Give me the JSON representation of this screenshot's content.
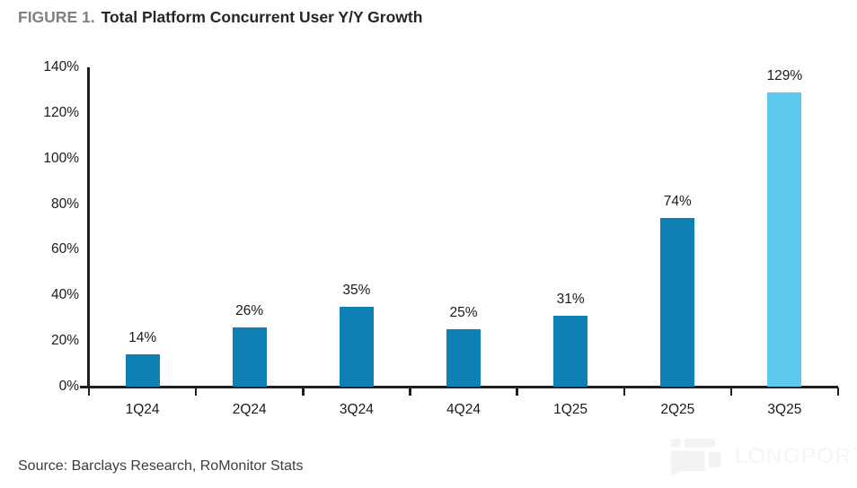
{
  "header": {
    "figure_label": "FIGURE 1.",
    "title": "Total Platform Concurrent User Y/Y Growth"
  },
  "chart_data": {
    "type": "bar",
    "title": "Total Platform Concurrent User Y/Y Growth",
    "categories": [
      "1Q24",
      "2Q24",
      "3Q24",
      "4Q24",
      "1Q25",
      "2Q25",
      "3Q25"
    ],
    "values": [
      14,
      26,
      35,
      25,
      31,
      74,
      129
    ],
    "value_labels": [
      "14%",
      "26%",
      "35%",
      "25%",
      "31%",
      "74%",
      "129%"
    ],
    "xlabel": "",
    "ylabel": "",
    "ylim": [
      0,
      140
    ],
    "ytick_step": 20,
    "ytick_labels": [
      "0%",
      "20%",
      "40%",
      "60%",
      "80%",
      "100%",
      "120%",
      "140%"
    ],
    "grid": false,
    "legend": "none",
    "bar_color": "#0F80B5",
    "highlight_color": "#5EC9EF",
    "highlight_index": 6,
    "axis_color": "#1F1F1F"
  },
  "footer": {
    "source": "Source: Barclays Research, RoMonitor Stats"
  },
  "watermark": {
    "text": "LONGPORT"
  }
}
